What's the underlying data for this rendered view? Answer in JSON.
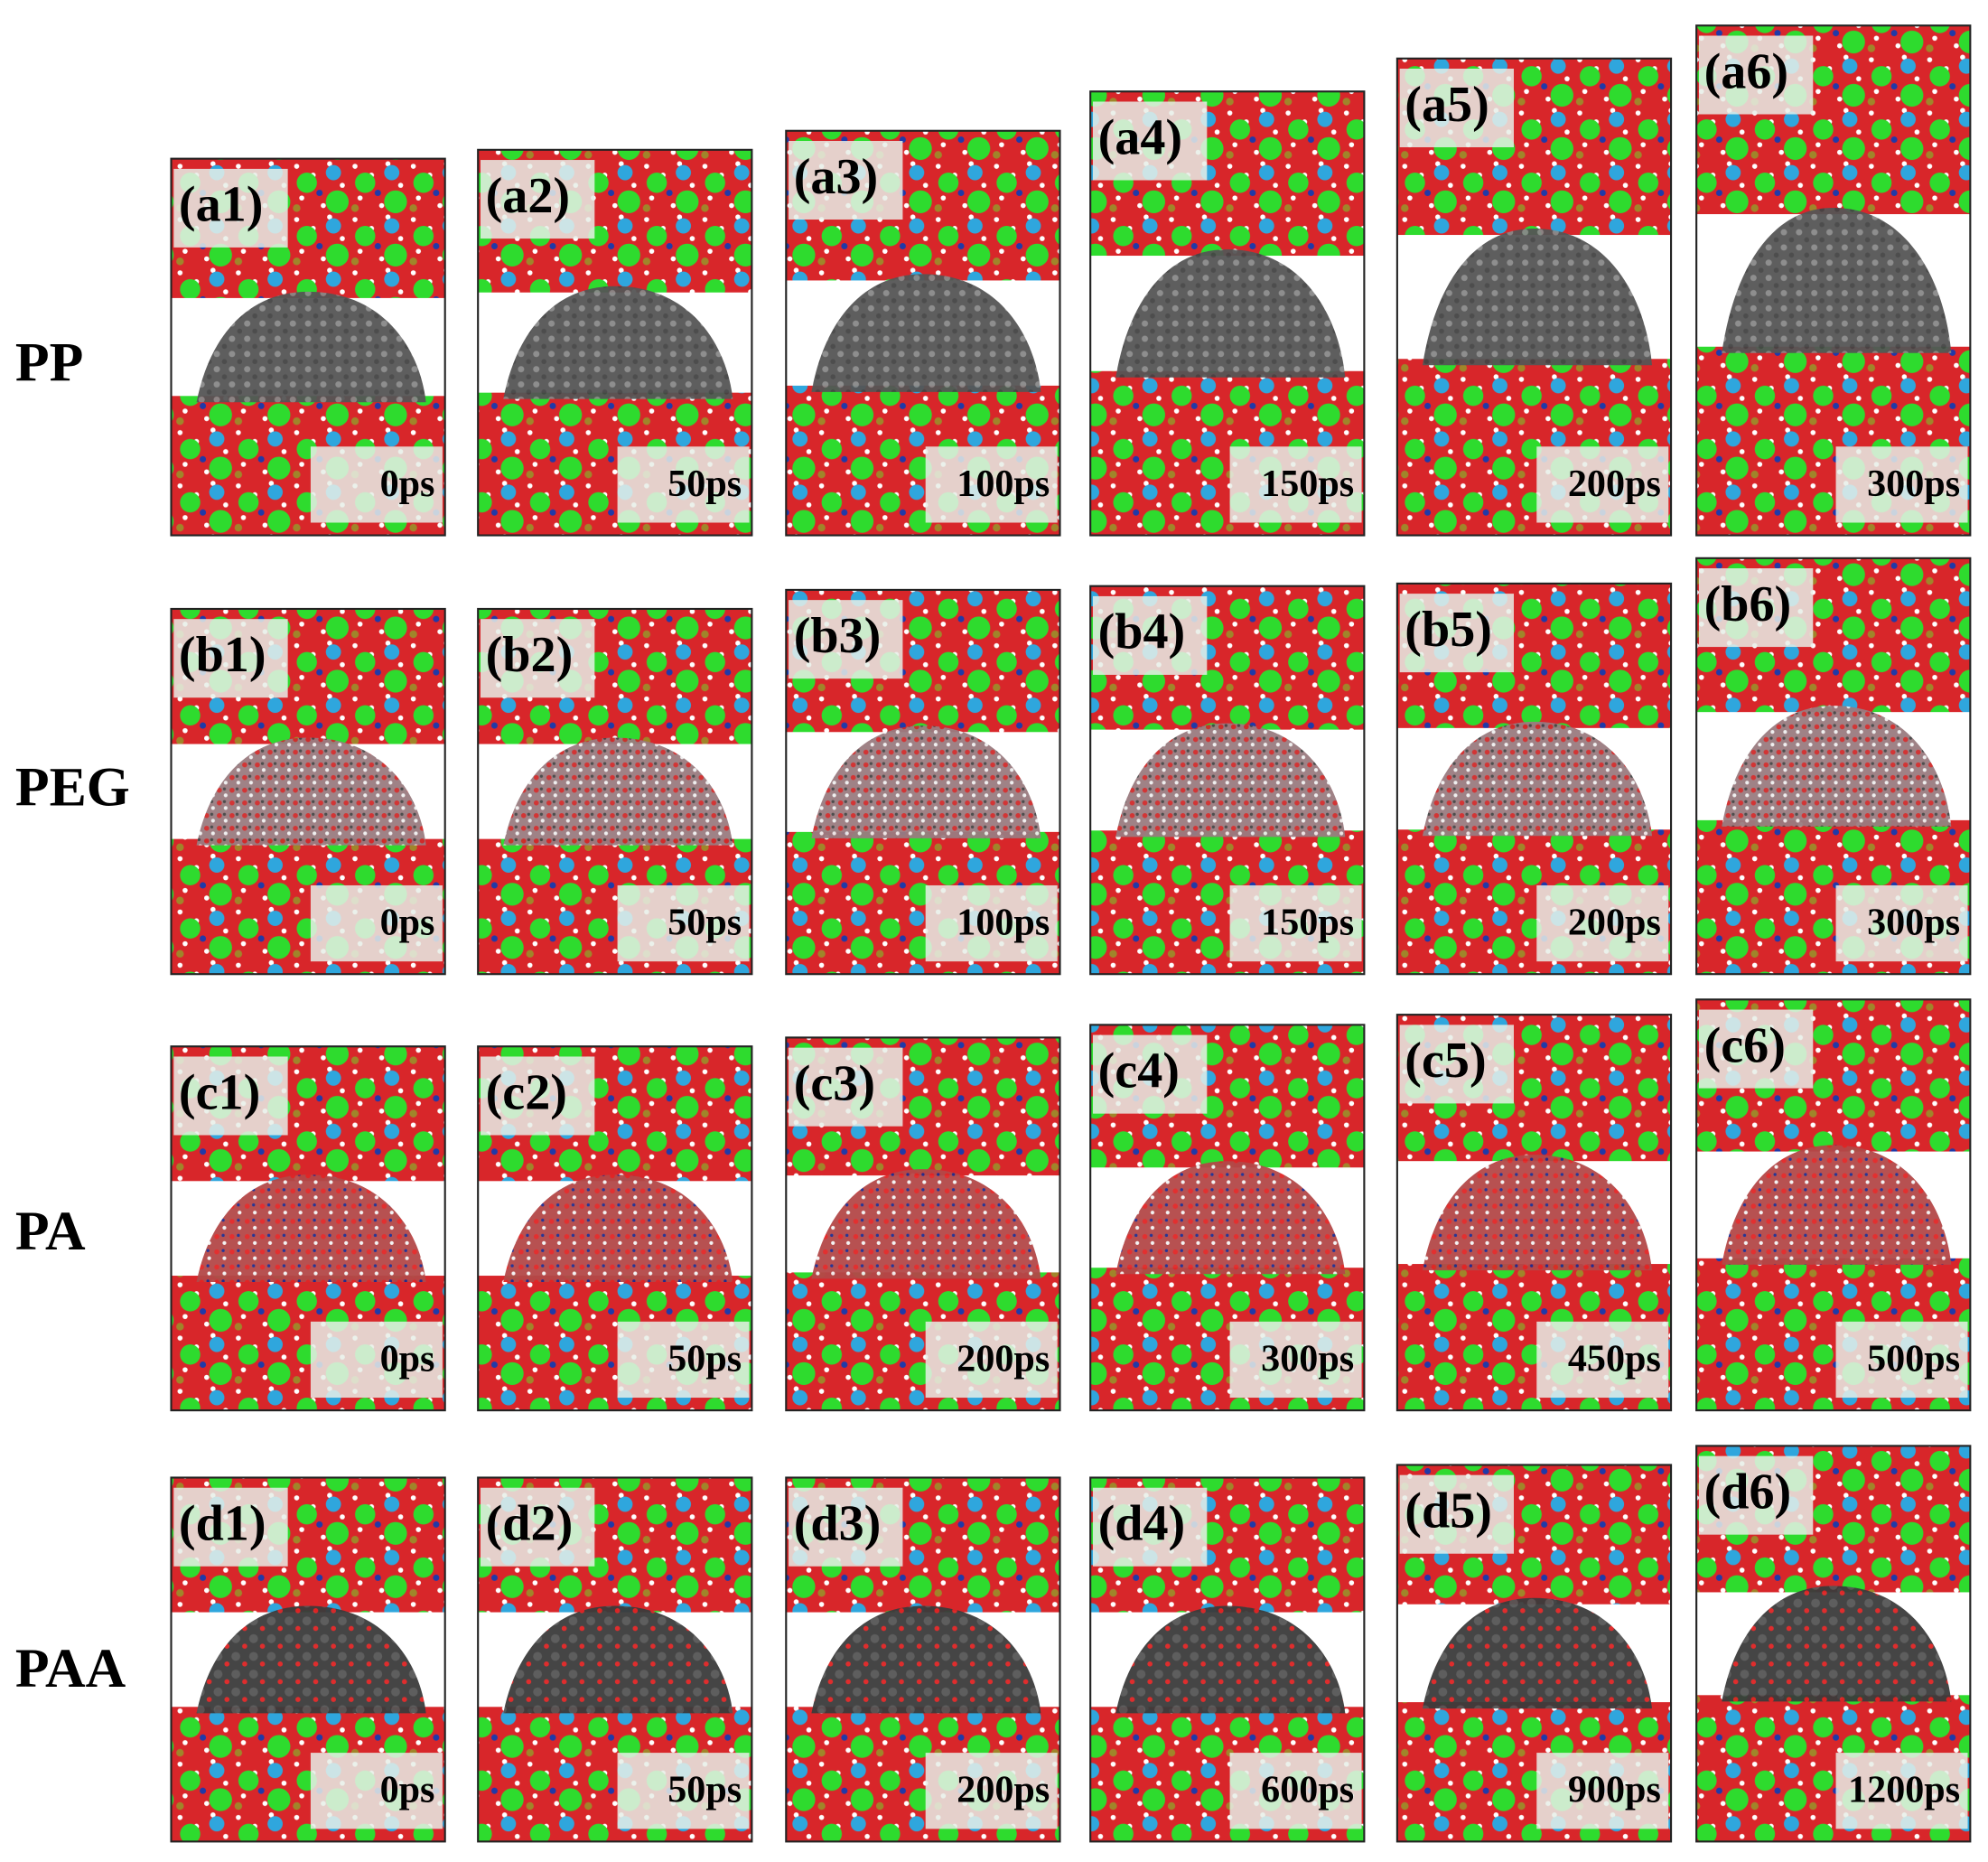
{
  "rows": [
    {
      "label": "PP",
      "panels": [
        {
          "id": "(a1)",
          "time": "0ps"
        },
        {
          "id": "(a2)",
          "time": "50ps"
        },
        {
          "id": "(a3)",
          "time": "100ps"
        },
        {
          "id": "(a4)",
          "time": "150ps"
        },
        {
          "id": "(a5)",
          "time": "200ps"
        },
        {
          "id": "(a6)",
          "time": "300ps"
        }
      ]
    },
    {
      "label": "PEG",
      "panels": [
        {
          "id": "(b1)",
          "time": "0ps"
        },
        {
          "id": "(b2)",
          "time": "50ps"
        },
        {
          "id": "(b3)",
          "time": "100ps"
        },
        {
          "id": "(b4)",
          "time": "150ps"
        },
        {
          "id": "(b5)",
          "time": "200ps"
        },
        {
          "id": "(b6)",
          "time": "300ps"
        }
      ]
    },
    {
      "label": "PA",
      "panels": [
        {
          "id": "(c1)",
          "time": "0ps"
        },
        {
          "id": "(c2)",
          "time": "50ps"
        },
        {
          "id": "(c3)",
          "time": "200ps"
        },
        {
          "id": "(c4)",
          "time": "300ps"
        },
        {
          "id": "(c5)",
          "time": "450ps"
        },
        {
          "id": "(c6)",
          "time": "500ps"
        }
      ]
    },
    {
      "label": "PAA",
      "panels": [
        {
          "id": "(d1)",
          "time": "0ps"
        },
        {
          "id": "(d2)",
          "time": "50ps"
        },
        {
          "id": "(d3)",
          "time": "200ps"
        },
        {
          "id": "(d4)",
          "time": "600ps"
        },
        {
          "id": "(d5)",
          "time": "900ps"
        },
        {
          "id": "(d6)",
          "time": "1200ps"
        }
      ]
    }
  ]
}
